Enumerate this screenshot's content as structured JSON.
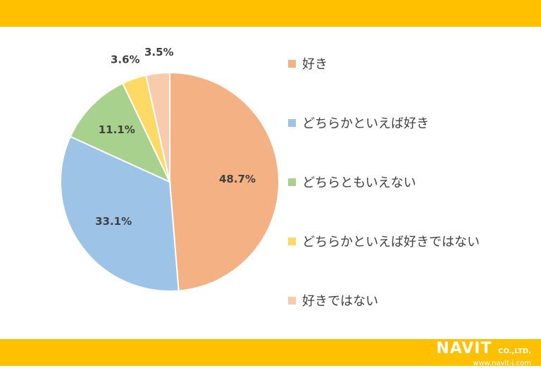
{
  "colors": {
    "band": "#FFC000",
    "slices": [
      "#F4B183",
      "#9DC3E6",
      "#A9D18E",
      "#FFD966",
      "#F8CBAD"
    ],
    "slice_border": "#ffffff",
    "text": "#404040"
  },
  "brand": {
    "name": "NAVIT",
    "suffix": "CO.,LTD.",
    "url": "www.navit-j.com"
  },
  "chart_data": {
    "type": "pie",
    "categories": [
      "好き",
      "どちらかといえば好き",
      "どちらともいえない",
      "どちらかといえば好きではない",
      "好きではない"
    ],
    "values": [
      48.7,
      33.1,
      11.1,
      3.6,
      3.5
    ],
    "value_labels": [
      "48.7%",
      "33.1%",
      "11.1%",
      "3.6%",
      "3.5%"
    ],
    "start_angle": "12 o'clock",
    "direction": "clockwise",
    "legend_position": "right"
  }
}
